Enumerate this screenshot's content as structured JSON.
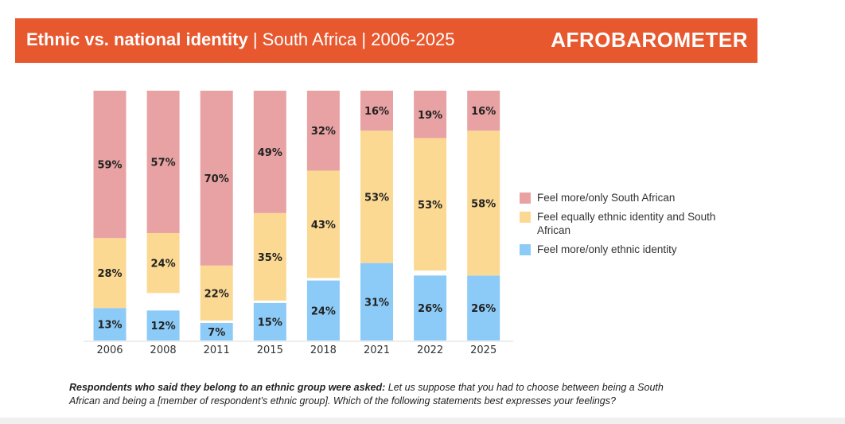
{
  "header": {
    "title_bold": "Ethnic vs. national identity",
    "title_rest": "| South Africa | 2006-2025",
    "logo_text": "AFROBAROMETER",
    "bg_color": "#e8582f"
  },
  "chart_data": {
    "type": "bar",
    "stacked": true,
    "categories": [
      "2006",
      "2008",
      "2011",
      "2015",
      "2018",
      "2021",
      "2022",
      "2025"
    ],
    "ylim": [
      0,
      100
    ],
    "grid": false,
    "legend_position": "right",
    "series": [
      {
        "name": "Feel more/only ethnic identity",
        "color": "#8ccbf7",
        "values": [
          13,
          12,
          7,
          15,
          24,
          31,
          26,
          26
        ]
      },
      {
        "name": "Feel equally ethnic identity and South African",
        "color": "#fbd993",
        "values": [
          28,
          24,
          22,
          35,
          43,
          53,
          53,
          58
        ]
      },
      {
        "name": "Feel more/only South African",
        "color": "#e8a2a3",
        "values": [
          59,
          57,
          70,
          49,
          32,
          16,
          19,
          16
        ]
      }
    ],
    "legend_order": [
      2,
      1,
      0
    ]
  },
  "note": {
    "bold": "Respondents who said they belong to an ethnic group were asked:",
    "text": " Let us suppose that you had to choose between being a South African and being a [member of respondent’s ethnic group]. Which of the following statements best expresses your feelings?"
  }
}
